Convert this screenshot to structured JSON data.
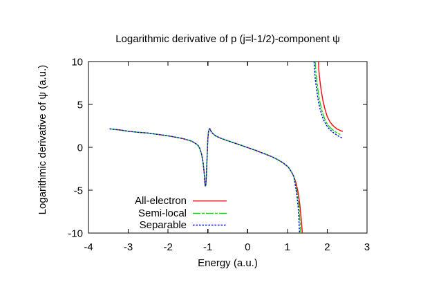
{
  "chart_data": {
    "type": "line",
    "title": "Logarithmic derivative of p (j=l-1/2)-component ψ",
    "xlabel": "Energy (a.u.)",
    "ylabel": "Logarithmic derivative of ψ (a.u.)",
    "xlim": [
      -4,
      3
    ],
    "ylim": [
      -10,
      10
    ],
    "xticks": [
      -4,
      -3,
      -2,
      -1,
      0,
      1,
      2,
      3
    ],
    "yticks": [
      -10,
      -5,
      0,
      5,
      10
    ],
    "grid": false,
    "frame_color": "#000000",
    "background_color": "#ffffff",
    "legend_position": "inside bottom-center, text left of line samples",
    "shared_branch": [
      [
        -3.47,
        2.15
      ],
      [
        -3.2,
        2.02
      ],
      [
        -3.0,
        1.87
      ],
      [
        -2.75,
        1.75
      ],
      [
        -2.5,
        1.66
      ],
      [
        -2.25,
        1.5
      ],
      [
        -2.0,
        1.34
      ],
      [
        -1.75,
        1.13
      ],
      [
        -1.6,
        0.98
      ],
      [
        -1.5,
        0.85
      ],
      [
        -1.4,
        0.7
      ],
      [
        -1.3,
        0.42
      ],
      [
        -1.25,
        0.24
      ],
      [
        -1.2,
        -0.15
      ],
      [
        -1.16,
        -0.75
      ],
      [
        -1.12,
        -1.75
      ],
      [
        -1.09,
        -3.0
      ],
      [
        -1.075,
        -4.2
      ],
      [
        -1.065,
        -4.55
      ],
      [
        -1.05,
        -4.4
      ],
      [
        -1.035,
        -3.2
      ],
      [
        -1.02,
        -1.2
      ],
      [
        -1.0,
        1.0
      ],
      [
        -0.985,
        1.75
      ],
      [
        -0.965,
        2.12
      ],
      [
        -0.95,
        2.18
      ],
      [
        -0.93,
        1.95
      ],
      [
        -0.88,
        1.62
      ],
      [
        -0.8,
        1.32
      ],
      [
        -0.67,
        1.05
      ],
      [
        -0.55,
        0.85
      ],
      [
        -0.43,
        0.65
      ],
      [
        -0.3,
        0.45
      ],
      [
        -0.2,
        0.3
      ],
      [
        -0.1,
        0.13
      ],
      [
        0.0,
        -0.03
      ],
      [
        0.1,
        -0.19
      ],
      [
        0.2,
        -0.35
      ],
      [
        0.3,
        -0.54
      ],
      [
        0.44,
        -0.78
      ],
      [
        0.61,
        -1.1
      ],
      [
        0.78,
        -1.5
      ],
      [
        0.9,
        -1.85
      ],
      [
        1.02,
        -2.3
      ],
      [
        1.1,
        -2.85
      ],
      [
        1.16,
        -3.4
      ]
    ],
    "series": [
      {
        "name": "All-electron",
        "color": "#ff0000",
        "style": "solid",
        "pole_tail": [
          [
            1.22,
            -4.2
          ],
          [
            1.27,
            -5.3
          ],
          [
            1.31,
            -6.6
          ],
          [
            1.34,
            -8.0
          ],
          [
            1.36,
            -9.1
          ],
          [
            1.375,
            -10
          ]
        ],
        "upper_branch": [
          [
            1.78,
            10
          ],
          [
            1.79,
            9.0
          ],
          [
            1.815,
            7.8
          ],
          [
            1.85,
            6.6
          ],
          [
            1.89,
            5.5
          ],
          [
            1.94,
            4.5
          ],
          [
            2.0,
            3.6
          ],
          [
            2.07,
            2.95
          ],
          [
            2.15,
            2.5
          ],
          [
            2.24,
            2.15
          ],
          [
            2.33,
            1.95
          ],
          [
            2.39,
            1.85
          ]
        ]
      },
      {
        "name": "Semi-local",
        "color": "#00dd00",
        "style": "dash-dot",
        "pole_tail": [
          [
            1.21,
            -4.4
          ],
          [
            1.25,
            -5.5
          ],
          [
            1.29,
            -6.9
          ],
          [
            1.31,
            -8.2
          ],
          [
            1.325,
            -9.2
          ],
          [
            1.335,
            -10
          ]
        ],
        "upper_branch": [
          [
            1.7,
            10
          ],
          [
            1.71,
            9.0
          ],
          [
            1.735,
            7.8
          ],
          [
            1.77,
            6.6
          ],
          [
            1.81,
            5.4
          ],
          [
            1.86,
            4.4
          ],
          [
            1.92,
            3.5
          ],
          [
            1.99,
            2.8
          ],
          [
            2.07,
            2.3
          ],
          [
            2.16,
            1.95
          ],
          [
            2.25,
            1.65
          ],
          [
            2.33,
            1.5
          ]
        ]
      },
      {
        "name": "Separable",
        "color": "#0000ff",
        "style": "dotted",
        "pole_tail": [
          [
            1.2,
            -4.5
          ],
          [
            1.24,
            -5.7
          ],
          [
            1.27,
            -7.0
          ],
          [
            1.285,
            -8.2
          ],
          [
            1.295,
            -9.2
          ],
          [
            1.305,
            -10
          ]
        ],
        "upper_branch": [
          [
            1.67,
            10
          ],
          [
            1.68,
            9.0
          ],
          [
            1.705,
            7.8
          ],
          [
            1.74,
            6.5
          ],
          [
            1.78,
            5.3
          ],
          [
            1.83,
            4.3
          ],
          [
            1.89,
            3.4
          ],
          [
            1.96,
            2.7
          ],
          [
            2.04,
            2.2
          ],
          [
            2.13,
            1.8
          ],
          [
            2.23,
            1.45
          ],
          [
            2.32,
            1.2
          ],
          [
            2.37,
            1.1
          ]
        ]
      }
    ]
  }
}
